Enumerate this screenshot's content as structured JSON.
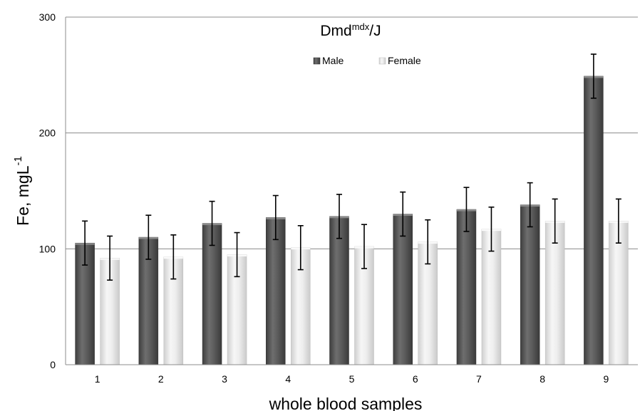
{
  "chart_data": {
    "type": "bar",
    "title": "Dmd",
    "title_superscript": "mdx",
    "title_suffix": "/J",
    "xlabel": "whole blood samples",
    "ylabel": "Fe, mgL",
    "ylabel_superscript": "-1",
    "categories": [
      "1",
      "2",
      "3",
      "4",
      "5",
      "6",
      "7",
      "8",
      "9"
    ],
    "ylim": [
      0,
      300
    ],
    "yticks": [
      "0",
      "100",
      "200",
      "300"
    ],
    "grid": true,
    "legend_position": "top-center",
    "series": [
      {
        "name": "Male",
        "color": "#5a5a5a",
        "values": [
          105,
          110,
          122,
          127,
          128,
          130,
          134,
          138,
          249
        ],
        "errors": [
          19,
          19,
          19,
          19,
          19,
          19,
          19,
          19,
          19
        ]
      },
      {
        "name": "Female",
        "color": "#e6e6e6",
        "values": [
          92,
          93,
          95,
          101,
          102,
          106,
          117,
          124,
          124
        ],
        "errors": [
          19,
          19,
          19,
          19,
          19,
          19,
          19,
          19,
          19
        ]
      }
    ]
  }
}
